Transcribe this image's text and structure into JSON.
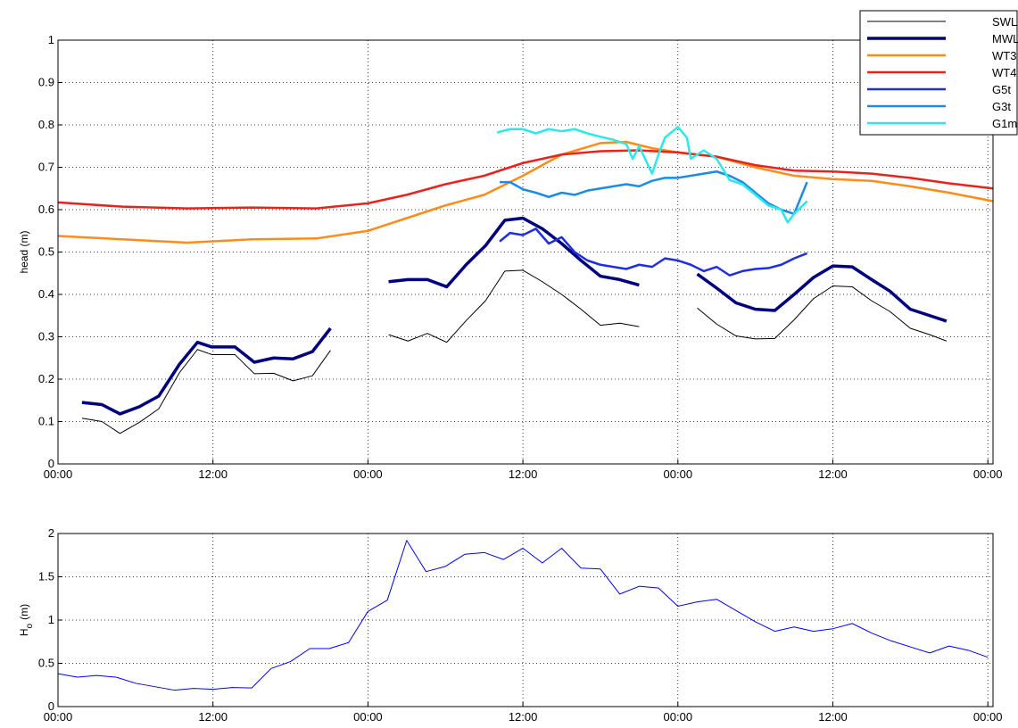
{
  "chart_data": [
    {
      "type": "line",
      "ylabel": "head (m)",
      "grid": true,
      "legend": "northeast",
      "xlim": [
        0,
        72.4
      ],
      "ylim": [
        0,
        1
      ],
      "xticks": [
        {
          "value": 0,
          "label": "00:00"
        },
        {
          "value": 12,
          "label": "12:00"
        },
        {
          "value": 24,
          "label": "00:00"
        },
        {
          "value": 36,
          "label": "12:00"
        },
        {
          "value": 48,
          "label": "00:00"
        },
        {
          "value": 60,
          "label": "12:00"
        },
        {
          "value": 72,
          "label": "00:00"
        }
      ],
      "yticks": [
        0,
        0.1,
        0.2,
        0.3,
        0.4,
        0.5,
        0.6,
        0.7,
        0.8,
        0.9,
        1
      ],
      "series": [
        {
          "name": "SWL",
          "color": "#000000",
          "linewidth": 1,
          "x": [
            1.86,
            3.4,
            4.8,
            6.3,
            7.8,
            9.4,
            10.8,
            11.9,
            13.7,
            15.2,
            16.7,
            18.2,
            19.7,
            21.1,
            null,
            25.6,
            27.1,
            28.6,
            30.1,
            31.6,
            33.1,
            34.6,
            36,
            37.5,
            39,
            40.5,
            42,
            43.5,
            45,
            null,
            49.5,
            51,
            52.5,
            54,
            55.5,
            57,
            58.5,
            60,
            61.5,
            63,
            64.4,
            66,
            67.5,
            68.8
          ],
          "values": [
            0.108,
            0.1,
            0.072,
            0.098,
            0.13,
            0.215,
            0.27,
            0.258,
            0.258,
            0.213,
            0.214,
            0.196,
            0.208,
            0.268,
            null,
            0.305,
            0.29,
            0.308,
            0.287,
            0.338,
            0.385,
            0.455,
            0.457,
            0.43,
            0.4,
            0.365,
            0.327,
            0.332,
            0.324,
            null,
            0.368,
            0.33,
            0.302,
            0.295,
            0.296,
            0.34,
            0.39,
            0.42,
            0.418,
            0.385,
            0.36,
            0.32,
            0.305,
            0.29
          ]
        },
        {
          "name": "MWL",
          "color": "#00007f",
          "linewidth": 3.5,
          "x": [
            1.86,
            3.4,
            4.8,
            6.3,
            7.8,
            9.4,
            10.8,
            11.9,
            13.7,
            15.2,
            16.7,
            18.2,
            19.7,
            21.1,
            null,
            25.6,
            27.1,
            28.6,
            30.1,
            31.6,
            33.1,
            34.6,
            36,
            37.5,
            39,
            40.5,
            42,
            43.5,
            45,
            null,
            49.5,
            51,
            52.5,
            54,
            55.5,
            57,
            58.5,
            60,
            61.5,
            63,
            64.4,
            66,
            67.5,
            68.8
          ],
          "values": [
            0.145,
            0.14,
            0.118,
            0.135,
            0.16,
            0.235,
            0.287,
            0.276,
            0.276,
            0.24,
            0.25,
            0.248,
            0.265,
            0.32,
            null,
            0.43,
            0.435,
            0.435,
            0.418,
            0.47,
            0.515,
            0.575,
            0.58,
            0.555,
            0.52,
            0.48,
            0.443,
            0.435,
            0.422,
            null,
            0.448,
            0.415,
            0.38,
            0.365,
            0.362,
            0.4,
            0.44,
            0.467,
            0.465,
            0.435,
            0.408,
            0.365,
            0.35,
            0.337
          ]
        },
        {
          "name": "WT3",
          "color": "#ff8c1a",
          "linewidth": 2.5,
          "x": [
            0,
            5,
            10,
            15,
            20,
            24,
            27,
            30,
            33,
            36,
            39,
            42,
            44,
            46,
            48,
            51,
            54,
            57,
            60,
            63,
            66,
            69,
            72.4
          ],
          "values": [
            0.538,
            0.53,
            0.522,
            0.53,
            0.532,
            0.55,
            0.58,
            0.61,
            0.635,
            0.68,
            0.73,
            0.757,
            0.76,
            0.745,
            0.735,
            0.725,
            0.7,
            0.68,
            0.672,
            0.668,
            0.655,
            0.64,
            0.62
          ]
        },
        {
          "name": "WT4",
          "color": "#e8231e",
          "linewidth": 2.5,
          "x": [
            0,
            5,
            10,
            15,
            20,
            24,
            27,
            30,
            33,
            36,
            39,
            42,
            45,
            48,
            51,
            54,
            57,
            60,
            63,
            66,
            69,
            72.4
          ],
          "values": [
            0.617,
            0.607,
            0.603,
            0.605,
            0.603,
            0.615,
            0.635,
            0.66,
            0.68,
            0.71,
            0.73,
            0.738,
            0.74,
            0.735,
            0.725,
            0.705,
            0.692,
            0.69,
            0.685,
            0.675,
            0.662,
            0.65
          ]
        },
        {
          "name": "G5t",
          "color": "#1f2fe0",
          "linewidth": 2.5,
          "x": [
            34.2,
            35,
            36,
            37,
            38,
            39,
            40,
            41,
            42,
            43,
            44,
            45,
            46,
            47,
            48,
            49,
            50,
            51,
            52,
            53,
            54,
            55,
            56,
            57,
            58
          ],
          "values": [
            0.525,
            0.545,
            0.54,
            0.555,
            0.52,
            0.535,
            0.5,
            0.48,
            0.47,
            0.465,
            0.46,
            0.47,
            0.465,
            0.485,
            0.48,
            0.47,
            0.455,
            0.465,
            0.445,
            0.455,
            0.46,
            0.462,
            0.47,
            0.485,
            0.497
          ]
        },
        {
          "name": "G3t",
          "color": "#1a8ce8",
          "linewidth": 2.5,
          "x": [
            34.2,
            35,
            36,
            37,
            38,
            39,
            40,
            41,
            42,
            43,
            44,
            45,
            46,
            47,
            48,
            49,
            50,
            51,
            52,
            53,
            54,
            55,
            56,
            57,
            58
          ],
          "values": [
            0.665,
            0.665,
            0.648,
            0.64,
            0.63,
            0.64,
            0.635,
            0.645,
            0.65,
            0.655,
            0.66,
            0.655,
            0.668,
            0.675,
            0.675,
            0.68,
            0.685,
            0.69,
            0.68,
            0.665,
            0.64,
            0.615,
            0.6,
            0.59,
            0.665
          ]
        },
        {
          "name": "G1m",
          "color": "#2ee8e8",
          "linewidth": 2.5,
          "x": [
            34,
            35,
            36,
            37,
            38,
            39,
            40,
            41,
            42,
            43,
            44,
            44.5,
            45,
            46,
            46.5,
            47,
            48,
            48.7,
            49,
            50,
            51,
            52,
            53,
            54,
            55,
            56,
            56.5,
            57,
            58
          ],
          "values": [
            0.782,
            0.79,
            0.79,
            0.78,
            0.79,
            0.785,
            0.79,
            0.78,
            0.772,
            0.765,
            0.755,
            0.72,
            0.75,
            0.685,
            0.73,
            0.77,
            0.795,
            0.77,
            0.72,
            0.74,
            0.72,
            0.67,
            0.66,
            0.635,
            0.61,
            0.6,
            0.57,
            0.59,
            0.62
          ]
        }
      ]
    },
    {
      "type": "line",
      "ylabel": "H",
      "ylabel_subscript": "o",
      "ylabel_unit": "(m)",
      "grid": true,
      "xlim": [
        0,
        72.4
      ],
      "ylim": [
        0,
        2
      ],
      "xticks": [
        {
          "value": 0,
          "label": "00:00"
        },
        {
          "value": 12,
          "label": "12:00"
        },
        {
          "value": 24,
          "label": "00:00"
        },
        {
          "value": 36,
          "label": "12:00"
        },
        {
          "value": 48,
          "label": "00:00"
        },
        {
          "value": 60,
          "label": "12:00"
        },
        {
          "value": 72,
          "label": "00:00"
        }
      ],
      "yticks": [
        0,
        0.5,
        1,
        1.5,
        2
      ],
      "color": "#0000ff",
      "x": [
        0,
        1.5,
        3,
        4.5,
        6,
        7.5,
        9,
        10.5,
        12,
        13.5,
        15,
        16.5,
        18,
        19.5,
        21,
        22.5,
        24,
        25.5,
        27,
        28.5,
        30,
        31.5,
        33,
        34.5,
        36,
        37.5,
        39,
        40.5,
        42,
        43.5,
        45,
        46.5,
        48,
        49.5,
        51,
        52.5,
        54,
        55.5,
        57,
        58.5,
        60,
        61.5,
        63,
        64.5,
        66,
        67.5,
        69,
        70.5,
        72
      ],
      "values": [
        0.38,
        0.34,
        0.36,
        0.34,
        0.27,
        0.23,
        0.19,
        0.21,
        0.2,
        0.22,
        0.215,
        0.44,
        0.52,
        0.67,
        0.67,
        0.74,
        1.1,
        1.23,
        1.92,
        1.56,
        1.62,
        1.76,
        1.78,
        1.7,
        1.83,
        1.66,
        1.83,
        1.6,
        1.59,
        1.3,
        1.39,
        1.37,
        1.16,
        1.21,
        1.24,
        1.11,
        0.98,
        0.87,
        0.92,
        0.87,
        0.9,
        0.96,
        0.85,
        0.76,
        0.69,
        0.62,
        0.7,
        0.65,
        0.57
      ]
    }
  ]
}
